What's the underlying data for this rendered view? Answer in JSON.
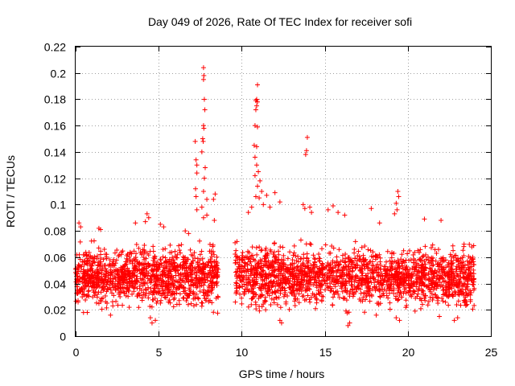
{
  "chart_data": {
    "type": "scatter",
    "title": "Day 049 of 2026, Rate Of TEC Index for receiver sofi",
    "xlabel": "GPS time / hours",
    "ylabel": "ROTI / TECUs",
    "xlim": [
      0,
      25
    ],
    "ylim": [
      0,
      0.22
    ],
    "x_ticks": [
      0,
      5,
      10,
      15,
      20,
      25
    ],
    "y_ticks": [
      0,
      0.02,
      0.04,
      0.06,
      0.08,
      0.1,
      0.12,
      0.14,
      0.16,
      0.18,
      0.2,
      0.22
    ],
    "x_tick_labels": [
      "0",
      "5",
      "10",
      "15",
      "20",
      "25"
    ],
    "y_tick_labels": [
      "0",
      "0.02",
      "0.04",
      "0.06",
      "0.08",
      "0.1",
      "0.12",
      "0.14",
      "0.16",
      "0.18",
      "0.2",
      "0.22"
    ],
    "grid": true,
    "marker": "plus",
    "color": "#ff0000",
    "series": [
      {
        "name": "ROTI",
        "data_gap_hours": [
          8.6,
          9.6
        ],
        "typical_range": [
          0.015,
          0.07
        ],
        "points": [
          [
            7.7,
            0.204
          ],
          [
            7.72,
            0.198
          ],
          [
            7.7,
            0.195
          ],
          [
            7.75,
            0.18
          ],
          [
            7.78,
            0.172
          ],
          [
            7.7,
            0.16
          ],
          [
            7.72,
            0.158
          ],
          [
            7.65,
            0.15
          ],
          [
            7.68,
            0.148
          ],
          [
            7.2,
            0.148
          ],
          [
            7.6,
            0.14
          ],
          [
            7.25,
            0.134
          ],
          [
            7.3,
            0.13
          ],
          [
            7.8,
            0.128
          ],
          [
            7.3,
            0.124
          ],
          [
            7.75,
            0.12
          ],
          [
            7.22,
            0.112
          ],
          [
            7.7,
            0.11
          ],
          [
            7.25,
            0.106
          ],
          [
            8.4,
            0.108
          ],
          [
            8.3,
            0.104
          ],
          [
            7.9,
            0.104
          ],
          [
            7.6,
            0.098
          ],
          [
            7.3,
            0.096
          ],
          [
            7.9,
            0.092
          ],
          [
            7.7,
            0.09
          ],
          [
            8.35,
            0.088
          ],
          [
            10.95,
            0.191
          ],
          [
            10.9,
            0.18
          ],
          [
            10.85,
            0.179
          ],
          [
            10.95,
            0.178
          ],
          [
            10.9,
            0.175
          ],
          [
            10.85,
            0.172
          ],
          [
            10.8,
            0.16
          ],
          [
            10.95,
            0.159
          ],
          [
            10.75,
            0.145
          ],
          [
            10.9,
            0.144
          ],
          [
            10.8,
            0.136
          ],
          [
            10.9,
            0.13
          ],
          [
            11.0,
            0.125
          ],
          [
            10.8,
            0.122
          ],
          [
            11.1,
            0.118
          ],
          [
            10.95,
            0.114
          ],
          [
            11.2,
            0.11
          ],
          [
            12.0,
            0.109
          ],
          [
            11.5,
            0.107
          ],
          [
            10.85,
            0.106
          ],
          [
            11.05,
            0.105
          ],
          [
            12.3,
            0.102
          ],
          [
            10.6,
            0.098
          ],
          [
            11.3,
            0.1
          ],
          [
            11.7,
            0.098
          ],
          [
            10.4,
            0.094
          ],
          [
            13.95,
            0.151
          ],
          [
            13.9,
            0.141
          ],
          [
            13.85,
            0.138
          ],
          [
            13.7,
            0.1
          ],
          [
            14.1,
            0.098
          ],
          [
            13.8,
            0.097
          ],
          [
            14.2,
            0.094
          ],
          [
            15.5,
            0.099
          ],
          [
            15.2,
            0.096
          ],
          [
            15.8,
            0.094
          ],
          [
            16.2,
            0.092
          ],
          [
            19.4,
            0.11
          ],
          [
            19.45,
            0.106
          ],
          [
            19.3,
            0.101
          ],
          [
            19.35,
            0.096
          ],
          [
            17.8,
            0.097
          ],
          [
            19.2,
            0.093
          ],
          [
            21.0,
            0.089
          ],
          [
            22.0,
            0.088
          ],
          [
            18.3,
            0.086
          ],
          [
            4.3,
            0.093
          ],
          [
            4.4,
            0.09
          ],
          [
            4.2,
            0.087
          ],
          [
            3.6,
            0.086
          ],
          [
            0.2,
            0.086
          ],
          [
            0.3,
            0.083
          ],
          [
            1.4,
            0.082
          ],
          [
            1.5,
            0.081
          ],
          [
            5.1,
            0.085
          ],
          [
            5.3,
            0.083
          ],
          [
            6.6,
            0.08
          ],
          [
            6.8,
            0.078
          ],
          [
            9.6,
            0.071
          ],
          [
            9.65,
            0.065
          ],
          [
            9.7,
            0.04
          ],
          [
            16.4,
            0.008
          ],
          [
            16.5,
            0.01
          ],
          [
            12.4,
            0.01
          ],
          [
            12.3,
            0.012
          ],
          [
            4.6,
            0.01
          ],
          [
            4.8,
            0.012
          ],
          [
            4.5,
            0.014
          ],
          [
            19.5,
            0.012
          ],
          [
            19.3,
            0.014
          ],
          [
            22.8,
            0.012
          ],
          [
            23.0,
            0.014
          ],
          [
            2.1,
            0.016
          ],
          [
            0.7,
            0.018
          ],
          [
            18.1,
            0.016
          ],
          [
            21.9,
            0.015
          ]
        ]
      }
    ]
  }
}
